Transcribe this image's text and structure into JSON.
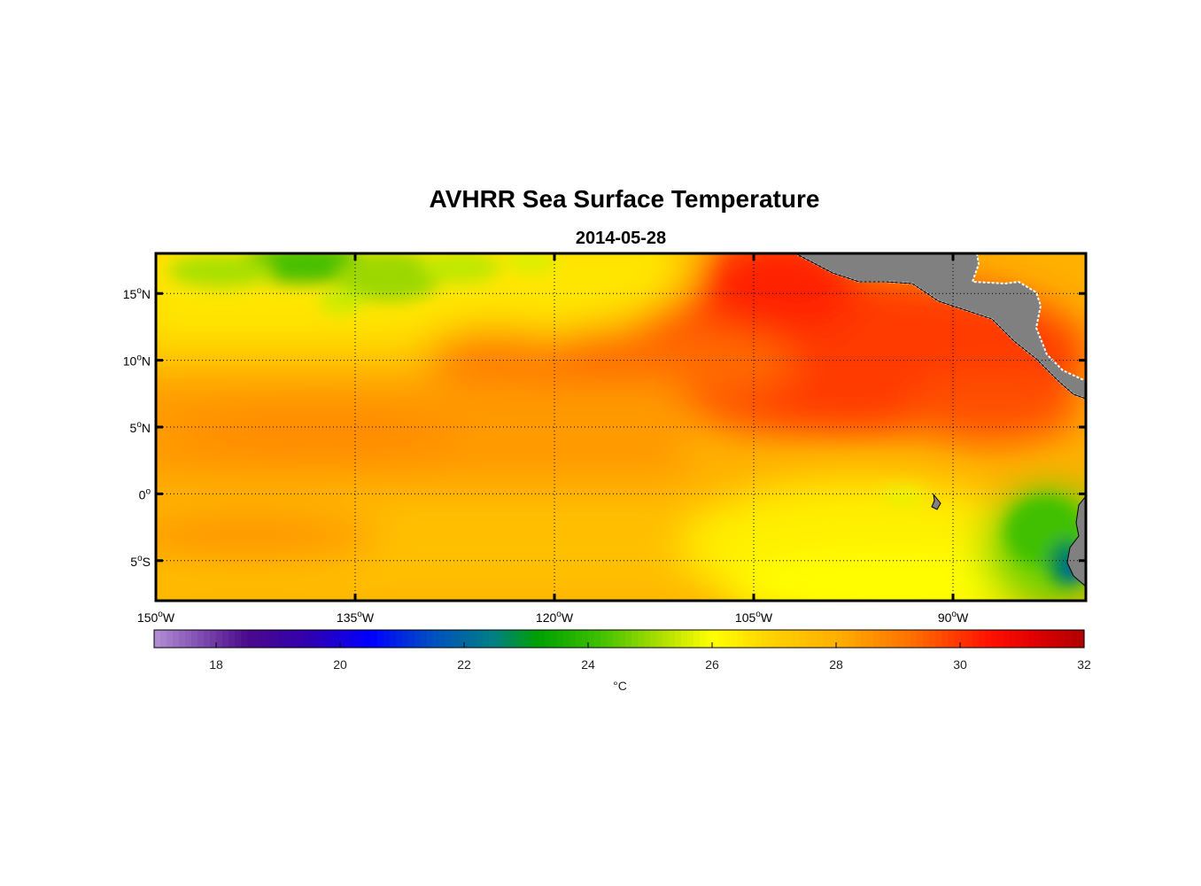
{
  "title": "AVHRR Sea Surface Temperature",
  "subtitle": "2014-05-28",
  "map": {
    "lon_range": [
      -150,
      -80
    ],
    "lat_range": [
      -8,
      18
    ],
    "lat_ticks": [
      {
        "value": 15,
        "label": "15",
        "suffix": "N"
      },
      {
        "value": 10,
        "label": "10",
        "suffix": "N"
      },
      {
        "value": 5,
        "label": "5",
        "suffix": "N"
      },
      {
        "value": 0,
        "label": "0",
        "suffix": ""
      },
      {
        "value": -5,
        "label": "5",
        "suffix": "S"
      }
    ],
    "lon_ticks": [
      {
        "value": -150,
        "label": "150",
        "suffix": "W"
      },
      {
        "value": -135,
        "label": "135",
        "suffix": "W"
      },
      {
        "value": -120,
        "label": "120",
        "suffix": "W"
      },
      {
        "value": -105,
        "label": "105",
        "suffix": "W"
      },
      {
        "value": -90,
        "label": "90",
        "suffix": "W"
      }
    ],
    "degree_symbol": "o",
    "land_color": "#808080",
    "coast_color": "#ffffff",
    "grid_style": "dotted"
  },
  "colorbar": {
    "unit": "°C",
    "min": 17,
    "max": 32,
    "ticks": [
      18,
      20,
      22,
      24,
      26,
      28,
      30,
      32
    ],
    "stops": [
      {
        "value": 17.0,
        "color": "#b48fd6"
      },
      {
        "value": 18.5,
        "color": "#4a0a8a"
      },
      {
        "value": 19.5,
        "color": "#3000b0"
      },
      {
        "value": 20.5,
        "color": "#0000ff"
      },
      {
        "value": 21.5,
        "color": "#0050c0"
      },
      {
        "value": 22.5,
        "color": "#008080"
      },
      {
        "value": 23.2,
        "color": "#00a000"
      },
      {
        "value": 24.2,
        "color": "#40c000"
      },
      {
        "value": 25.2,
        "color": "#b0e000"
      },
      {
        "value": 26.0,
        "color": "#ffff00"
      },
      {
        "value": 27.0,
        "color": "#ffd000"
      },
      {
        "value": 28.0,
        "color": "#ffb000"
      },
      {
        "value": 29.2,
        "color": "#ff7000"
      },
      {
        "value": 30.5,
        "color": "#ff1000"
      },
      {
        "value": 31.2,
        "color": "#e00000"
      },
      {
        "value": 32.0,
        "color": "#b00000"
      }
    ]
  }
}
